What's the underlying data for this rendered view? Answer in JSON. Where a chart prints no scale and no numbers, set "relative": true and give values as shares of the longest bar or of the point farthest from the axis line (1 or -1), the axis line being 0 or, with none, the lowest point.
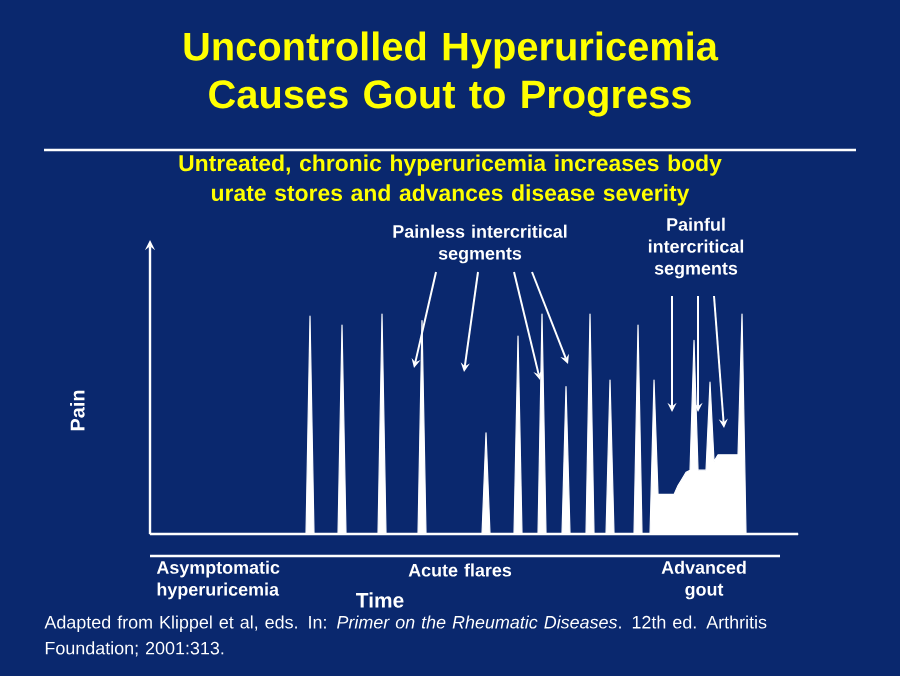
{
  "chart_data": {
    "type": "area",
    "relative": true,
    "color": "#ffffff",
    "title": "Uncontrolled Hyperuricemia Causes Gout to Progress",
    "subtitle": "Untreated, chronic hyperuricemia increases body urate stores and advances disease severity",
    "xlabel": "Time",
    "ylabel": "Pain",
    "categories": [
      null,
      null,
      null,
      null,
      null,
      null,
      null,
      null,
      null,
      null,
      null,
      null,
      null,
      null,
      null,
      null,
      null,
      null,
      null,
      null,
      null,
      null,
      null,
      null,
      null,
      null,
      null,
      null,
      null,
      null,
      null,
      null,
      null,
      null,
      null,
      null,
      null,
      null,
      null,
      null,
      null,
      null,
      null,
      null,
      null,
      null,
      null,
      null,
      null,
      null,
      null,
      null,
      null,
      null,
      null,
      null,
      null,
      null,
      null,
      null,
      null,
      null,
      null,
      null,
      null,
      null,
      null,
      null,
      null,
      null,
      null,
      null,
      null,
      null,
      null,
      null,
      null,
      null,
      null,
      null,
      null,
      null,
      null,
      null,
      null,
      null,
      null,
      null,
      null,
      null,
      null,
      null,
      null,
      null,
      null,
      null,
      null,
      null,
      null,
      null,
      null,
      null,
      null,
      null,
      null,
      null,
      null,
      null,
      null,
      null,
      null,
      null,
      null,
      null,
      null,
      null,
      null,
      null,
      null,
      null,
      null,
      null,
      null,
      null,
      null,
      null,
      null,
      null,
      null,
      null,
      null,
      null,
      null,
      null,
      null,
      null,
      null,
      null,
      null,
      null,
      null,
      null,
      null,
      null,
      null,
      null,
      null,
      null,
      null,
      null,
      null,
      null,
      null,
      null,
      null,
      null,
      null,
      null,
      null,
      null,
      null,
      null,
      null
    ],
    "values": [
      0,
      0,
      0,
      0,
      0,
      0,
      0,
      0,
      0,
      0,
      0,
      0,
      0,
      0,
      0,
      0,
      0,
      0,
      0,
      0,
      0,
      0,
      0,
      0,
      0,
      0,
      0,
      0,
      0,
      0,
      0,
      0,
      0,
      0,
      0,
      0,
      0,
      0,
      0,
      0,
      0.99,
      0,
      0,
      0,
      0,
      0,
      0,
      0,
      0.95,
      0,
      0,
      0,
      0,
      0,
      0,
      0,
      0,
      0,
      1,
      0,
      0,
      0,
      0,
      0,
      0,
      0,
      0,
      0,
      0.97,
      0,
      0,
      0,
      0,
      0,
      0,
      0,
      0,
      0,
      0,
      0,
      0,
      0,
      0,
      0,
      0.46,
      0,
      0,
      0,
      0,
      0,
      0,
      0,
      0.9,
      0,
      0,
      0,
      0,
      0,
      1,
      0,
      0,
      0,
      0,
      0,
      0.67,
      0,
      0,
      0,
      0,
      0,
      1,
      0,
      0,
      0,
      0,
      0.7,
      0,
      0,
      0,
      0,
      0,
      0,
      0.95,
      0,
      0,
      0,
      0.7,
      0.18,
      0.18,
      0.18,
      0.18,
      0.18,
      0.22,
      0.25,
      0.28,
      0.29,
      0.88,
      0.29,
      0.29,
      0.29,
      0.69,
      0.33,
      0.36,
      0.36,
      0.36,
      0.36,
      0.36,
      0.36,
      1,
      0,
      0,
      0,
      0,
      0,
      0,
      0,
      0,
      0,
      0,
      0,
      0,
      0,
      0
    ],
    "annotations": [
      "Asymptomatic hyperuricemia",
      "Acute flares",
      "Advanced gout",
      "Painless intercritical segments",
      "Painful intercritical segments",
      "Adapted from Klippel et al, eds. In: *Primer on the Rheumatic Diseases*. 12th ed. Arthritis Foundation; 2001:313."
    ]
  }
}
